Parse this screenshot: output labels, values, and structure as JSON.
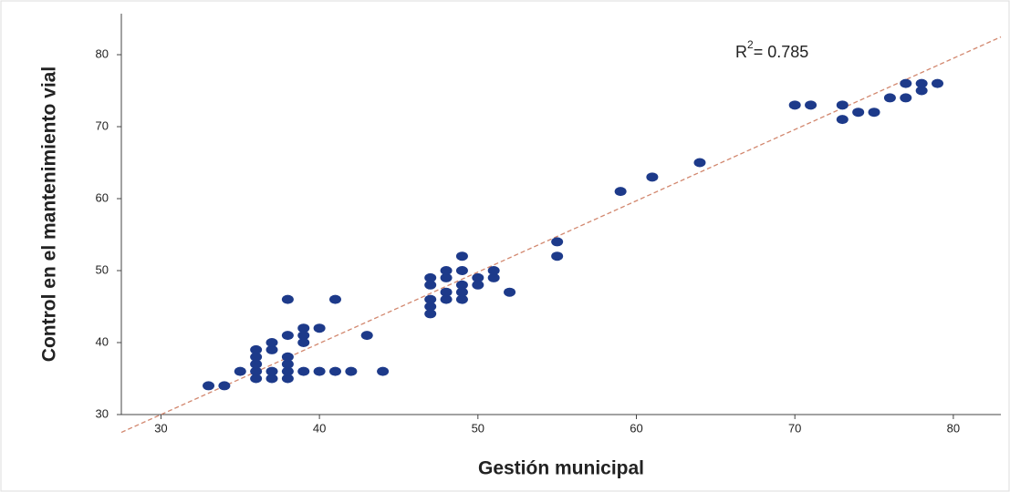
{
  "chart_data": {
    "type": "scatter",
    "x_label": "Gestión municipal",
    "y_label": "Control en el mantenimiento vial",
    "annotation": {
      "base": "R",
      "sup": "2",
      "text": "= 0.785"
    },
    "color": "#1d3a8a",
    "fit_line": {
      "slope": 0.99,
      "intercept": 0.3,
      "color": "#d2876e"
    },
    "xlim": [
      27.5,
      83
    ],
    "xticks": [
      30,
      40,
      50,
      60,
      70,
      80
    ],
    "ylim": [
      30,
      85.7
    ],
    "yticks": [
      30,
      40,
      50,
      60,
      70,
      80
    ],
    "x": [
      33,
      34,
      35,
      36,
      36,
      36,
      36,
      36,
      37,
      37,
      37,
      37,
      38,
      38,
      38,
      38,
      38,
      38,
      39,
      39,
      39,
      39,
      40,
      40,
      41,
      41,
      42,
      43,
      44,
      47,
      47,
      47,
      47,
      47,
      48,
      48,
      48,
      48,
      49,
      49,
      49,
      49,
      49,
      50,
      50,
      51,
      51,
      52,
      55,
      55,
      59,
      61,
      64,
      70,
      71,
      73,
      73,
      74,
      75,
      76,
      77,
      77,
      78,
      78,
      79
    ],
    "y": [
      34,
      34,
      36,
      35,
      36,
      37,
      38,
      39,
      35,
      36,
      39,
      40,
      35,
      36,
      37,
      38,
      41,
      46,
      36,
      40,
      41,
      42,
      36,
      42,
      36,
      46,
      36,
      41,
      36,
      44,
      45,
      46,
      48,
      49,
      46,
      47,
      49,
      50,
      46,
      47,
      48,
      50,
      52,
      48,
      49,
      49,
      50,
      47,
      52,
      54,
      61,
      63,
      65,
      73,
      73,
      71,
      73,
      72,
      72,
      74,
      74,
      76,
      75,
      76,
      76
    ]
  }
}
